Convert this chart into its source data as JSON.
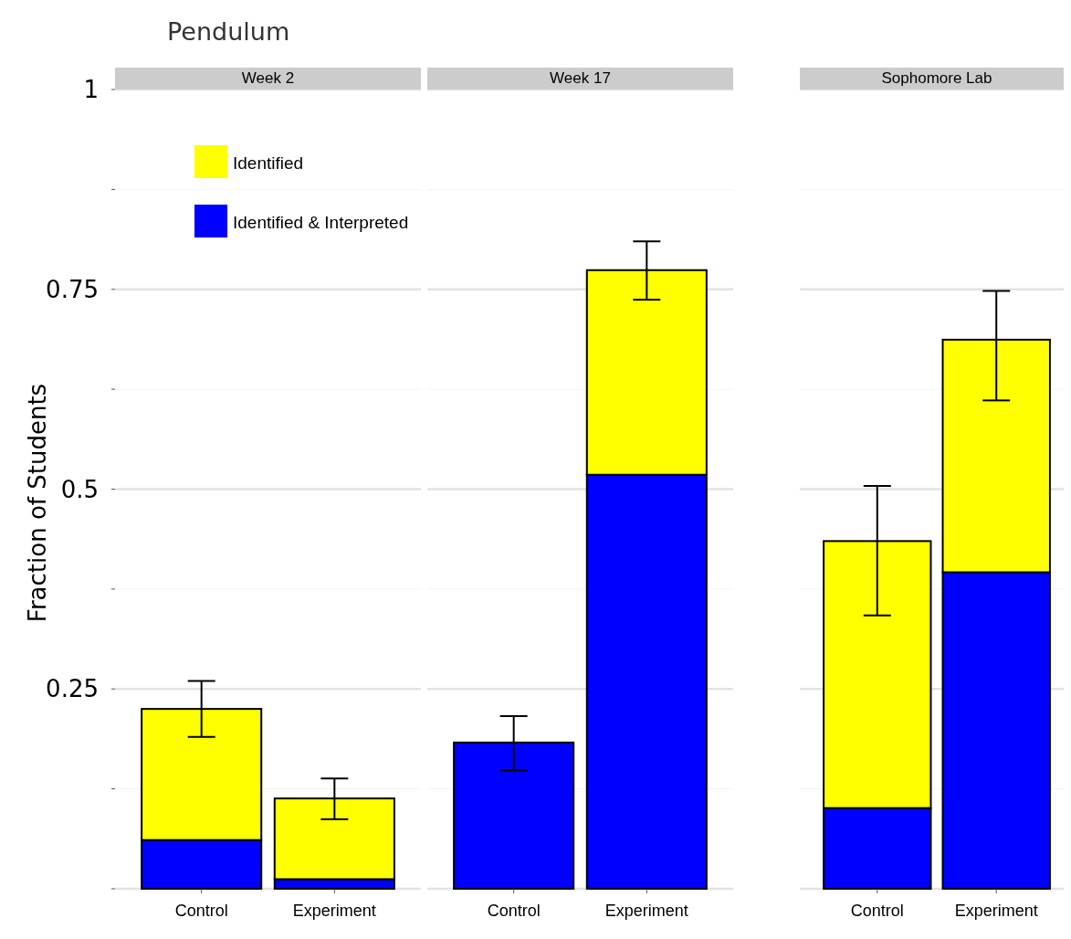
{
  "chart_data": [
    {
      "type": "bar",
      "title": "Week 2",
      "annotations": [
        "Pendulum"
      ],
      "ylabel": "Fraction of Students",
      "categories": [
        "Control",
        "Experiment"
      ],
      "stacked": true,
      "legend": "top",
      "grid": "y",
      "ylim": [
        0,
        1
      ],
      "yticks": [
        {
          "value": 0,
          "label": null
        },
        {
          "value": 0.125,
          "label": null
        },
        0.25,
        {
          "value": 0.375,
          "label": null
        },
        0.5,
        {
          "value": 0.625,
          "label": null
        },
        0.75,
        {
          "value": 0.875,
          "label": null
        },
        1
      ],
      "series": [
        {
          "name": "Identified & Interpreted",
          "color": "#0000ff",
          "values": [
            0.061,
            0.012
          ]
        },
        {
          "name": "Identified",
          "color": "#ffff00",
          "values": [
            0.164,
            0.101
          ],
          "errors": [
            [
              0.19,
              0.26
            ],
            [
              0.087,
              0.138
            ]
          ]
        }
      ]
    },
    {
      "type": "bar",
      "title": "Week 17",
      "categories": [
        "Control",
        "Experiment"
      ],
      "stacked": true,
      "grid": "y",
      "tick_labels": "x",
      "ylim": [
        0,
        1
      ],
      "yticks": [
        {
          "value": 0,
          "label": null
        },
        {
          "value": 0.125,
          "label": null
        },
        0.25,
        {
          "value": 0.375,
          "label": null
        },
        0.5,
        {
          "value": 0.625,
          "label": null
        },
        0.75,
        {
          "value": 0.875,
          "label": null
        },
        1
      ],
      "series": [
        {
          "color": "#0000ff",
          "values": [
            0.183,
            0.518
          ]
        },
        {
          "color": "#ffff00",
          "values": [
            0,
            0.256
          ],
          "errors": [
            [
              0.148,
              0.216
            ],
            [
              0.737,
              0.81
            ]
          ]
        }
      ]
    },
    {
      "type": "bar",
      "title": "Sophomore Lab",
      "categories": [
        "Control",
        "Experiment"
      ],
      "stacked": true,
      "grid": "y",
      "tick_labels": "x",
      "ylim": [
        0,
        1
      ],
      "yticks": [
        {
          "value": 0,
          "label": null
        },
        {
          "value": 0.125,
          "label": null
        },
        0.25,
        {
          "value": 0.375,
          "label": null
        },
        0.5,
        {
          "value": 0.625,
          "label": null
        },
        0.75,
        {
          "value": 0.875,
          "label": null
        },
        1
      ],
      "series": [
        {
          "color": "#0000ff",
          "values": [
            0.101,
            0.396
          ]
        },
        {
          "color": "#ffff00",
          "values": [
            0.334,
            0.291
          ],
          "errors": [
            [
              0.342,
              0.504
            ],
            [
              0.611,
              0.748
            ]
          ]
        }
      ]
    }
  ]
}
